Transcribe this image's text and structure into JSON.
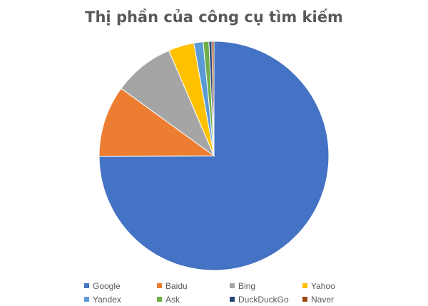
{
  "chart_data": {
    "type": "pie",
    "title": "Thị phần của công cụ tìm kiếm",
    "legend_position": "bottom",
    "slices": [
      {
        "name": "Google",
        "value": 74.5,
        "color": "#4472C4"
      },
      {
        "name": "Baidu",
        "value": 10.0,
        "color": "#ED7D31"
      },
      {
        "name": "Bing",
        "value": 8.5,
        "color": "#A5A5A5"
      },
      {
        "name": "Yahoo",
        "value": 3.6,
        "color": "#FFC000"
      },
      {
        "name": "Yandex",
        "value": 1.3,
        "color": "#5B9BD5"
      },
      {
        "name": "Ask",
        "value": 0.8,
        "color": "#70AD47"
      },
      {
        "name": "DuckDuckGo",
        "value": 0.4,
        "color": "#264478"
      },
      {
        "name": "Naver",
        "value": 0.3,
        "color": "#9E480E"
      }
    ]
  }
}
